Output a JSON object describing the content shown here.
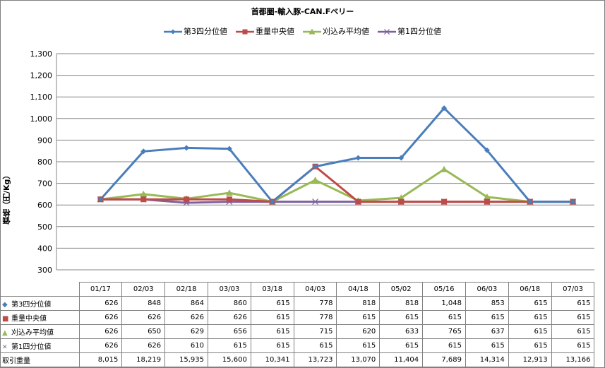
{
  "chart_data": {
    "type": "line",
    "title": "首都圏-輸入豚-CAN.Fベリー",
    "ylabel": "価格（円/Kg）",
    "ylim": [
      300,
      1300
    ],
    "yticks": [
      "300",
      "400",
      "500",
      "600",
      "700",
      "800",
      "900",
      "1,000",
      "1,100",
      "1,200",
      "1,300"
    ],
    "ytick_values": [
      300,
      400,
      500,
      600,
      700,
      800,
      900,
      1000,
      1100,
      1200,
      1300
    ],
    "grid": true,
    "legend_position": "top",
    "categories": [
      "01/17",
      "02/03",
      "02/18",
      "03/03",
      "03/18",
      "04/03",
      "04/18",
      "05/02",
      "05/16",
      "06/03",
      "06/18",
      "07/03"
    ],
    "series": [
      {
        "name": "第3四分位値",
        "color": "#4a7ebb",
        "marker": "diamond",
        "values": [
          626,
          848,
          864,
          860,
          615,
          778,
          818,
          818,
          1048,
          853,
          615,
          615
        ],
        "labels": [
          "626",
          "848",
          "864",
          "860",
          "615",
          "778",
          "818",
          "818",
          "1,048",
          "853",
          "615",
          "615"
        ]
      },
      {
        "name": "重量中央値",
        "color": "#be4b48",
        "marker": "square",
        "values": [
          626,
          626,
          626,
          626,
          615,
          778,
          615,
          615,
          615,
          615,
          615,
          615
        ],
        "labels": [
          "626",
          "626",
          "626",
          "626",
          "615",
          "778",
          "615",
          "615",
          "615",
          "615",
          "615",
          "615"
        ]
      },
      {
        "name": "刈込み平均値",
        "color": "#98b954",
        "marker": "triangle",
        "values": [
          626,
          650,
          629,
          656,
          615,
          715,
          620,
          633,
          765,
          637,
          615,
          615
        ],
        "labels": [
          "626",
          "650",
          "629",
          "656",
          "615",
          "715",
          "620",
          "633",
          "765",
          "637",
          "615",
          "615"
        ]
      },
      {
        "name": "第1四分位値",
        "color": "#7d60a0",
        "marker": "x",
        "values": [
          626,
          626,
          610,
          615,
          615,
          615,
          615,
          615,
          615,
          615,
          615,
          615
        ],
        "labels": [
          "626",
          "626",
          "610",
          "615",
          "615",
          "615",
          "615",
          "615",
          "615",
          "615",
          "615",
          "615"
        ]
      }
    ],
    "extra_row": {
      "name": "取引重量",
      "labels": [
        "8,015",
        "18,219",
        "15,935",
        "15,600",
        "10,341",
        "13,723",
        "13,070",
        "11,404",
        "7,689",
        "14,314",
        "12,913",
        "13,166"
      ]
    }
  }
}
